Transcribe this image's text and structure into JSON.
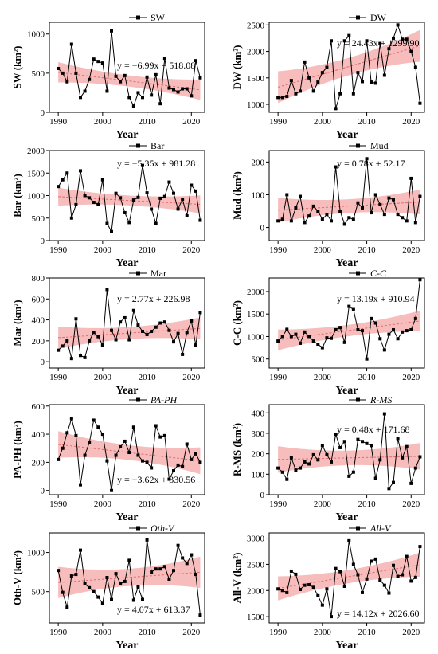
{
  "colors": {
    "band": "#f4a6a6",
    "trend": "#e36b6b",
    "line": "#000000"
  },
  "chart_data": [
    {
      "type": "line",
      "id": "sw",
      "legend": "SW",
      "legend_italic": false,
      "ylabel": "SW",
      "ylabel_unit": "(km²)",
      "xlabel": "Year",
      "equation": "y = −6.99x + 518.08",
      "xlim": [
        1988,
        2023
      ],
      "ylim": [
        0,
        1150
      ],
      "xticks": [
        "1990",
        "2000",
        "2010",
        "2020"
      ],
      "yticks": [
        "0",
        "500",
        "1000"
      ],
      "x": [
        1990,
        1991,
        1992,
        1993,
        1994,
        1995,
        1996,
        1997,
        1998,
        1999,
        2000,
        2001,
        2002,
        2003,
        2004,
        2005,
        2006,
        2007,
        2008,
        2009,
        2010,
        2011,
        2012,
        2013,
        2014,
        2015,
        2016,
        2017,
        2018,
        2019,
        2020,
        2021,
        2022
      ],
      "values": [
        560,
        500,
        390,
        870,
        500,
        190,
        270,
        420,
        680,
        650,
        630,
        270,
        1040,
        460,
        390,
        470,
        190,
        80,
        250,
        190,
        450,
        220,
        480,
        110,
        690,
        310,
        290,
        260,
        300,
        300,
        210,
        660,
        440
      ],
      "trend": {
        "slope": -6.99,
        "intercept": 518.08,
        "band": 130
      }
    },
    {
      "type": "line",
      "id": "dw",
      "legend": "DW",
      "legend_italic": false,
      "ylabel": "DW",
      "ylabel_unit": "(km²)",
      "xlabel": "Year",
      "equation": "y = 24.43x + 1299.90",
      "xlim": [
        1988,
        2023
      ],
      "ylim": [
        850,
        2550
      ],
      "xticks": [
        "1990",
        "2000",
        "2010",
        "2020"
      ],
      "yticks": [
        "1000",
        "1500",
        "2000",
        "2500"
      ],
      "x": [
        1990,
        1991,
        1992,
        1993,
        1994,
        1995,
        1996,
        1997,
        1998,
        1999,
        2000,
        2001,
        2002,
        2003,
        2004,
        2005,
        2006,
        2007,
        2008,
        2009,
        2010,
        2011,
        2012,
        2013,
        2014,
        2015,
        2016,
        2017,
        2018,
        2019,
        2020,
        2021,
        2022
      ],
      "values": [
        1130,
        1130,
        1150,
        1450,
        1200,
        1250,
        1800,
        1500,
        1250,
        1420,
        1600,
        1700,
        2200,
        920,
        1200,
        2200,
        2300,
        1200,
        1600,
        1430,
        2200,
        1420,
        1400,
        2150,
        1550,
        2050,
        2250,
        2500,
        2230,
        2230,
        2000,
        1700,
        1020
      ],
      "trend": {
        "slope": 24.43,
        "intercept": 1299.9,
        "band": 300
      }
    },
    {
      "type": "line",
      "id": "bar",
      "legend": "Bar",
      "legend_italic": false,
      "ylabel": "Bar",
      "ylabel_unit": "(km²)",
      "xlabel": "Year",
      "equation": "y = −5.35x + 981.28",
      "xlim": [
        1988,
        2023
      ],
      "ylim": [
        0,
        2000
      ],
      "xticks": [
        "1990",
        "2000",
        "2010",
        "2020"
      ],
      "yticks": [
        "0",
        "500",
        "1000",
        "1500",
        "2000"
      ],
      "x": [
        1990,
        1991,
        1992,
        1993,
        1994,
        1995,
        1996,
        1997,
        1998,
        1999,
        2000,
        2001,
        2002,
        2003,
        2004,
        2005,
        2006,
        2007,
        2008,
        2009,
        2010,
        2011,
        2012,
        2013,
        2014,
        2015,
        2016,
        2017,
        2018,
        2019,
        2020,
        2021,
        2022
      ],
      "values": [
        1200,
        1350,
        1500,
        500,
        800,
        1550,
        1000,
        950,
        850,
        800,
        1350,
        380,
        200,
        1050,
        950,
        620,
        400,
        900,
        960,
        1670,
        1060,
        700,
        380,
        940,
        980,
        1300,
        1050,
        700,
        920,
        550,
        1230,
        1100,
        450
      ],
      "trend": {
        "slope": -5.35,
        "intercept": 981.28,
        "band": 200
      }
    },
    {
      "type": "line",
      "id": "mud",
      "legend": "Mud",
      "legend_italic": false,
      "ylabel": "Mud",
      "ylabel_unit": "(km²)",
      "xlabel": "Year",
      "equation": "y = 0.78x + 52.17",
      "xlim": [
        1988,
        2023
      ],
      "ylim": [
        -40,
        235
      ],
      "xticks": [
        "1990",
        "2000",
        "2010",
        "2020"
      ],
      "yticks": [
        "0",
        "100",
        "200"
      ],
      "x": [
        1990,
        1991,
        1992,
        1993,
        1994,
        1995,
        1996,
        1997,
        1998,
        1999,
        2000,
        2001,
        2002,
        2003,
        2004,
        2005,
        2006,
        2007,
        2008,
        2009,
        2010,
        2011,
        2012,
        2013,
        2014,
        2015,
        2016,
        2017,
        2018,
        2019,
        2020,
        2021,
        2022
      ],
      "values": [
        20,
        25,
        100,
        20,
        60,
        95,
        15,
        35,
        65,
        50,
        25,
        40,
        20,
        185,
        50,
        10,
        30,
        25,
        75,
        60,
        210,
        45,
        100,
        70,
        40,
        90,
        85,
        40,
        30,
        20,
        150,
        15,
        95
      ],
      "trend": {
        "slope": 0.78,
        "intercept": 52.17,
        "band": 38
      }
    },
    {
      "type": "line",
      "id": "mar",
      "legend": "Mar",
      "legend_italic": false,
      "ylabel": "Mar",
      "ylabel_unit": "(km²)",
      "xlabel": "Year",
      "equation": "y = 2.77x + 226.98",
      "xlim": [
        1988,
        2023
      ],
      "ylim": [
        -60,
        800
      ],
      "xticks": [
        "1990",
        "2000",
        "2010",
        "2020"
      ],
      "yticks": [
        "0",
        "200",
        "400",
        "600",
        "800"
      ],
      "x": [
        1990,
        1991,
        1992,
        1993,
        1994,
        1995,
        1996,
        1997,
        1998,
        1999,
        2000,
        2001,
        2002,
        2003,
        2004,
        2005,
        2006,
        2007,
        2008,
        2009,
        2010,
        2011,
        2012,
        2013,
        2014,
        2015,
        2016,
        2017,
        2018,
        2019,
        2020,
        2021,
        2022
      ],
      "values": [
        110,
        150,
        200,
        30,
        410,
        60,
        40,
        200,
        280,
        240,
        160,
        690,
        300,
        210,
        380,
        420,
        210,
        490,
        350,
        290,
        260,
        290,
        330,
        370,
        380,
        300,
        190,
        270,
        70,
        280,
        390,
        160,
        470
      ],
      "trend": {
        "slope": 2.77,
        "intercept": 226.98,
        "band": 105
      }
    },
    {
      "type": "line",
      "id": "cc",
      "legend": "C-C",
      "legend_italic": true,
      "ylabel": "C-C",
      "ylabel_unit": "(km²)",
      "xlabel": "Year",
      "equation": "y = 13.19x + 910.94",
      "xlim": [
        1988,
        2023
      ],
      "ylim": [
        300,
        2300
      ],
      "xticks": [
        "1990",
        "2000",
        "2010",
        "2020"
      ],
      "yticks": [
        "500",
        "1000",
        "1500",
        "2000"
      ],
      "x": [
        1990,
        1991,
        1992,
        1993,
        1994,
        1995,
        1996,
        1997,
        1998,
        1999,
        2000,
        2001,
        2002,
        2003,
        2004,
        2005,
        2006,
        2007,
        2008,
        2009,
        2010,
        2011,
        2012,
        2013,
        2014,
        2015,
        2016,
        2017,
        2018,
        2019,
        2020,
        2021,
        2022
      ],
      "values": [
        900,
        1000,
        1160,
        1000,
        1050,
        850,
        1100,
        1000,
        900,
        830,
        750,
        970,
        960,
        1150,
        1200,
        870,
        1670,
        1600,
        1150,
        1130,
        500,
        1400,
        1300,
        950,
        700,
        1050,
        1150,
        950,
        1100,
        1130,
        1150,
        1400,
        2260
      ],
      "trend": {
        "slope": 13.19,
        "intercept": 910.94,
        "band": 230
      }
    },
    {
      "type": "line",
      "id": "paph",
      "legend": "PA-PH",
      "legend_italic": true,
      "ylabel": "PA-PH",
      "ylabel_unit": "(km²)",
      "xlabel": "Year",
      "equation": "y = −3.62x + 330.56",
      "xlim": [
        1988,
        2023
      ],
      "ylim": [
        -30,
        610
      ],
      "xticks": [
        "1990",
        "2000",
        "2010",
        "2020"
      ],
      "yticks": [
        "0",
        "200",
        "400",
        "600"
      ],
      "x": [
        1990,
        1991,
        1992,
        1993,
        1994,
        1995,
        1996,
        1997,
        1998,
        1999,
        2000,
        2001,
        2002,
        2003,
        2004,
        2005,
        2006,
        2007,
        2008,
        2009,
        2010,
        2011,
        2012,
        2013,
        2014,
        2015,
        2016,
        2017,
        2018,
        2019,
        2020,
        2021,
        2022
      ],
      "values": [
        220,
        300,
        410,
        510,
        390,
        40,
        250,
        340,
        500,
        450,
        400,
        210,
        0,
        250,
        310,
        350,
        270,
        450,
        250,
        210,
        200,
        160,
        460,
        380,
        390,
        80,
        140,
        180,
        170,
        330,
        220,
        260,
        200
      ],
      "trend": {
        "slope": -3.62,
        "intercept": 330.56,
        "band": 95
      }
    },
    {
      "type": "line",
      "id": "rms",
      "legend": "R-MS",
      "legend_italic": true,
      "ylabel": "R-MS",
      "ylabel_unit": "(km²)",
      "xlabel": "Year",
      "equation": "y = 0.48x + 171.68",
      "xlim": [
        1988,
        2023
      ],
      "ylim": [
        0,
        440
      ],
      "xticks": [
        "1990",
        "2000",
        "2010",
        "2020"
      ],
      "yticks": [
        "0",
        "100",
        "200",
        "300",
        "400"
      ],
      "x": [
        1990,
        1991,
        1992,
        1993,
        1994,
        1995,
        1996,
        1997,
        1998,
        1999,
        2000,
        2001,
        2002,
        2003,
        2004,
        2005,
        2006,
        2007,
        2008,
        2009,
        2010,
        2011,
        2012,
        2013,
        2014,
        2015,
        2016,
        2017,
        2018,
        2019,
        2020,
        2021,
        2022
      ],
      "values": [
        130,
        110,
        75,
        180,
        120,
        130,
        160,
        150,
        195,
        170,
        240,
        195,
        160,
        295,
        230,
        260,
        90,
        110,
        270,
        260,
        250,
        240,
        80,
        170,
        395,
        30,
        60,
        275,
        180,
        235,
        55,
        130,
        185
      ],
      "trend": {
        "slope": 0.48,
        "intercept": 171.68,
        "band": 65
      }
    },
    {
      "type": "line",
      "id": "othv",
      "legend": "Oth-V",
      "legend_italic": true,
      "ylabel": "Oth-V",
      "ylabel_unit": "(km²)",
      "xlabel": "Year",
      "equation": "y = 4.07x + 613.37",
      "xlim": [
        1988,
        2023
      ],
      "ylim": [
        100,
        1250
      ],
      "xticks": [
        "1990",
        "2000",
        "2010",
        "2020"
      ],
      "yticks": [
        "500",
        "1000"
      ],
      "x": [
        1990,
        1991,
        1992,
        1993,
        1994,
        1995,
        1996,
        1997,
        1998,
        1999,
        2000,
        2001,
        2002,
        2003,
        2004,
        2005,
        2006,
        2007,
        2008,
        2009,
        2010,
        2011,
        2012,
        2013,
        2014,
        2015,
        2016,
        2017,
        2018,
        2019,
        2020,
        2021,
        2022
      ],
      "values": [
        770,
        490,
        300,
        700,
        720,
        1030,
        600,
        550,
        500,
        430,
        350,
        680,
        400,
        730,
        600,
        630,
        900,
        390,
        560,
        400,
        1160,
        750,
        790,
        790,
        820,
        660,
        770,
        1090,
        930,
        860,
        970,
        720,
        200
      ],
      "trend": {
        "slope": 4.07,
        "intercept": 613.37,
        "band": 200
      }
    },
    {
      "type": "line",
      "id": "allv",
      "legend": "All-V",
      "legend_italic": true,
      "ylabel": "All-V",
      "ylabel_unit": "(km²)",
      "xlabel": "Year",
      "equation": "y = 14.12x + 2026.60",
      "xlim": [
        1988,
        2023
      ],
      "ylim": [
        1380,
        3100
      ],
      "xticks": [
        "1990",
        "2000",
        "2010",
        "2020"
      ],
      "yticks": [
        "1500",
        "2000",
        "2500",
        "3000"
      ],
      "x": [
        1990,
        1991,
        1992,
        1993,
        1994,
        1995,
        1996,
        1997,
        1998,
        1999,
        2000,
        2001,
        2002,
        2003,
        2004,
        2005,
        2006,
        2007,
        2008,
        2009,
        2010,
        2011,
        2012,
        2013,
        2014,
        2015,
        2016,
        2017,
        2018,
        2019,
        2020,
        2021,
        2022
      ],
      "values": [
        2030,
        2000,
        1960,
        2370,
        2310,
        2020,
        2100,
        2110,
        2060,
        1900,
        1720,
        2030,
        1500,
        2420,
        2360,
        2080,
        2950,
        2500,
        2300,
        1960,
        2220,
        2560,
        2600,
        2200,
        2100,
        1950,
        2480,
        2270,
        2300,
        2650,
        2180,
        2250,
        2840
      ],
      "trend": {
        "slope": 14.12,
        "intercept": 2026.6,
        "band": 230
      }
    }
  ]
}
